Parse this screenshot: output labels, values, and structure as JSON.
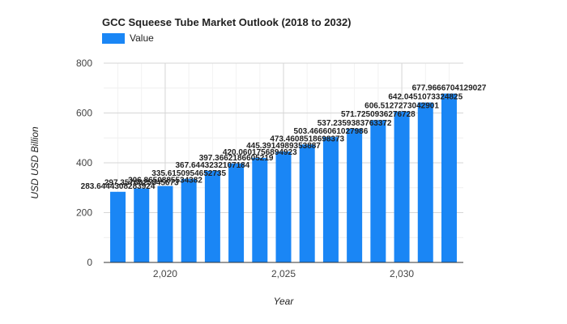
{
  "chart_data": {
    "type": "bar",
    "title": "GCC Squeese Tube Market Outlook (2018 to 2032)",
    "xlabel": "Year",
    "ylabel": "USD USD Billion",
    "legend": {
      "label": "Value",
      "placement": "top-left"
    },
    "x_ticks": [
      {
        "x": 2020,
        "label": "2,020"
      },
      {
        "x": 2025,
        "label": "2,025"
      },
      {
        "x": 2030,
        "label": "2,030"
      }
    ],
    "y_ticks": [
      0,
      200,
      400,
      600,
      800
    ],
    "ylim": [
      0,
      800
    ],
    "xlim": [
      2017.4,
      2032.6
    ],
    "grid": true,
    "color": "#1a86f5",
    "categories": [
      2018,
      2019,
      2020,
      2021,
      2022,
      2023,
      2024,
      2025,
      2026,
      2027,
      2028,
      2029,
      2030,
      2031,
      2032
    ],
    "values": [
      283.6444308283924,
      297.3576825845673,
      306.8650885534382,
      335.6150954652735,
      367.6443232107184,
      397.3662186605219,
      420.0601756894923,
      445.3914989353887,
      473.4608518698373,
      503.4666061027986,
      537.2359383763372,
      571.7250936276728,
      606.5127273042901,
      642.0451073324825,
      677.9666704129027
    ],
    "data_labels": [
      "283.6444308283924",
      "297.3576825845673",
      "306.8650885534382",
      "335.6150954652735",
      "367.6443232107184",
      "397.3662186605219",
      "420.0601756894923",
      "445.3914989353887",
      "473.4608518698373",
      "503.4666061027986",
      "537.2359383763372",
      "571.7250936276728",
      "606.5127273042901",
      "642.0451073324825",
      "677.9666704129027"
    ]
  }
}
